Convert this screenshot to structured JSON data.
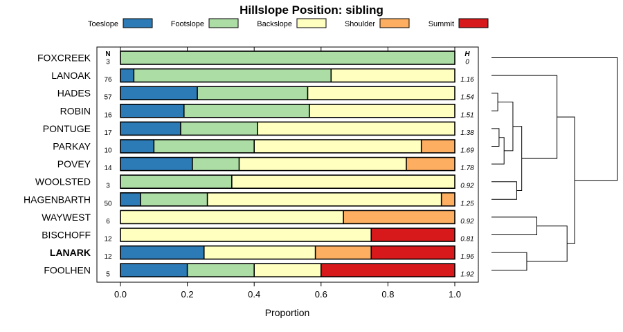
{
  "chart_data": {
    "type": "bar",
    "orientation": "horizontal",
    "stacked": true,
    "title": "Hillslope Position: sibling",
    "xlabel": "Proportion",
    "xlim": [
      0,
      1
    ],
    "xticks": [
      "0.0",
      "0.2",
      "0.4",
      "0.6",
      "0.8",
      "1.0"
    ],
    "n_header": "N",
    "h_header": "H",
    "legend_position": "top",
    "series": [
      {
        "name": "Toeslope",
        "color": "#2c7bb6"
      },
      {
        "name": "Footslope",
        "color": "#abdda4"
      },
      {
        "name": "Backslope",
        "color": "#ffffbf"
      },
      {
        "name": "Shoulder",
        "color": "#fdae61"
      },
      {
        "name": "Summit",
        "color": "#d7191c"
      }
    ],
    "categories": [
      {
        "label": "FOXCREEK",
        "n": "3",
        "h": "0",
        "bold": false,
        "values": [
          0,
          1.0,
          0,
          0,
          0
        ]
      },
      {
        "label": "LANOAK",
        "n": "76",
        "h": "1.16",
        "bold": false,
        "values": [
          0.04,
          0.59,
          0.37,
          0,
          0
        ]
      },
      {
        "label": "HADES",
        "n": "57",
        "h": "1.54",
        "bold": false,
        "values": [
          0.23,
          0.33,
          0.44,
          0,
          0
        ]
      },
      {
        "label": "ROBIN",
        "n": "16",
        "h": "1.51",
        "bold": false,
        "values": [
          0.19,
          0.375,
          0.435,
          0,
          0
        ]
      },
      {
        "label": "PONTUGE",
        "n": "17",
        "h": "1.38",
        "bold": false,
        "values": [
          0.18,
          0.23,
          0.59,
          0,
          0
        ]
      },
      {
        "label": "PARKAY",
        "n": "10",
        "h": "1.69",
        "bold": false,
        "values": [
          0.1,
          0.3,
          0.5,
          0.1,
          0
        ]
      },
      {
        "label": "POVEY",
        "n": "14",
        "h": "1.78",
        "bold": false,
        "values": [
          0.215,
          0.14,
          0.5,
          0.145,
          0
        ]
      },
      {
        "label": "WOOLSTED",
        "n": "3",
        "h": "0.92",
        "bold": false,
        "values": [
          0,
          0.333,
          0.667,
          0,
          0
        ]
      },
      {
        "label": "HAGENBARTH",
        "n": "50",
        "h": "1.25",
        "bold": false,
        "values": [
          0.06,
          0.2,
          0.7,
          0.04,
          0
        ]
      },
      {
        "label": "WAYWEST",
        "n": "6",
        "h": "0.92",
        "bold": false,
        "values": [
          0,
          0,
          0.667,
          0.333,
          0
        ]
      },
      {
        "label": "BISCHOFF",
        "n": "12",
        "h": "0.81",
        "bold": false,
        "values": [
          0,
          0,
          0.75,
          0,
          0.25
        ]
      },
      {
        "label": "LANARK",
        "n": "12",
        "h": "1.96",
        "bold": true,
        "values": [
          0.25,
          0,
          0.333,
          0.167,
          0.25
        ]
      },
      {
        "label": "FOOLHEN",
        "n": "5",
        "h": "1.92",
        "bold": false,
        "values": [
          0.2,
          0.2,
          0.2,
          0,
          0.4
        ]
      }
    ],
    "dendrogram": {
      "merges": [
        {
          "a": "HADES",
          "b": "ROBIN",
          "height": 0.05
        },
        {
          "a": "PONTUGE",
          "b": "PARKAY",
          "height": 0.06
        },
        {
          "a": "m1",
          "b": "POVEY",
          "height": 0.1
        },
        {
          "a": "m0",
          "b": "m2",
          "height": 0.17
        },
        {
          "a": "WOOLSTED",
          "b": "HAGENBARTH",
          "height": 0.2
        },
        {
          "a": "m3",
          "b": "m4",
          "height": 0.24
        },
        {
          "a": "LANOAK",
          "b": "m5",
          "height": 0.52
        },
        {
          "a": "LANARK",
          "b": "FOOLHEN",
          "height": 0.28
        },
        {
          "a": "WAYWEST",
          "b": "BISCHOFF",
          "height": 0.36
        },
        {
          "a": "m8",
          "b": "m7",
          "height": 0.6
        },
        {
          "a": "m6",
          "b": "m9",
          "height": 0.66
        },
        {
          "a": "FOXCREEK",
          "b": "m10",
          "height": 1.0
        }
      ]
    }
  }
}
